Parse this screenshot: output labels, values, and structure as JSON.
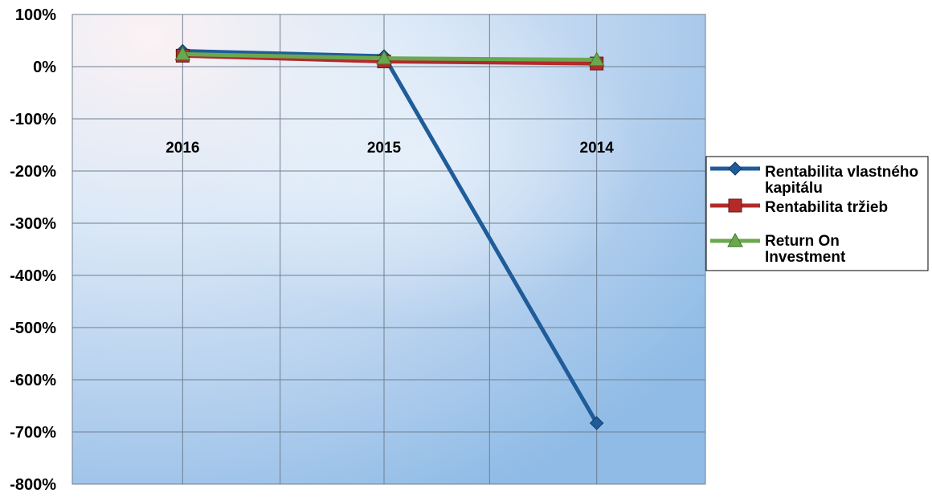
{
  "chart_data": {
    "type": "line",
    "categories": [
      "2016",
      "2015",
      "2014"
    ],
    "ylim": [
      -800,
      100
    ],
    "yticks": [
      100,
      0,
      -100,
      -200,
      -300,
      -400,
      -500,
      -600,
      -700,
      -800
    ],
    "ytick_labels": [
      "100%",
      "0%",
      "-100%",
      "-200%",
      "-300%",
      "-400%",
      "-500%",
      "-600%",
      "-700%",
      "-800%"
    ],
    "grid": true,
    "legend_position": "right",
    "series": [
      {
        "name": "Rentabilita vlastného kapitálu",
        "legend_lines": [
          "Rentabilita vlastného",
          "kapitálu"
        ],
        "values": [
          30,
          20,
          -683
        ],
        "color": "#1f5c99",
        "marker": "diamond"
      },
      {
        "name": "Rentabilita tržieb",
        "legend_lines": [
          "Rentabilita tržieb"
        ],
        "values": [
          21,
          10,
          6
        ],
        "color": "#b22a2a",
        "marker": "square"
      },
      {
        "name": "Return On Investment",
        "legend_lines": [
          "Return On",
          "Investment"
        ],
        "values": [
          24,
          16,
          13
        ],
        "color": "#6aa84f",
        "marker": "triangle"
      }
    ]
  }
}
